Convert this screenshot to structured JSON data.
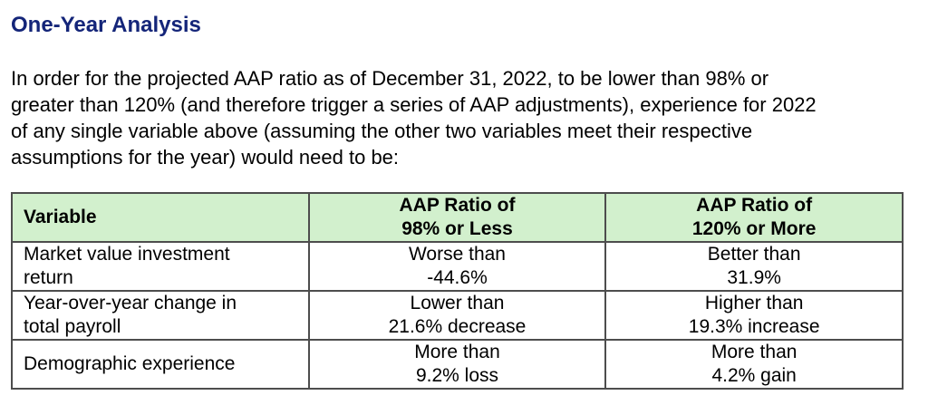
{
  "colors": {
    "accent": "#142579",
    "header_bg": "#d2f0cd",
    "border": "#4d4d4d"
  },
  "page": {
    "title": "One-Year Analysis",
    "intro_lines": [
      "In order for the projected AAP ratio as of December 31, 2022, to be lower than 98% or",
      "greater than 120% (and therefore trigger a series of AAP adjustments), experience for 2022",
      "of any single variable above (assuming the other two variables meet their respective",
      "assumptions for the year) would need to be:"
    ]
  },
  "table": {
    "headers": {
      "variable": {
        "line1": "Variable",
        "line2": ""
      },
      "less": {
        "line1": "AAP Ratio of",
        "line2": "98% or Less"
      },
      "more": {
        "line1": "AAP Ratio of",
        "line2": "120% or More"
      }
    },
    "rows": [
      {
        "variable": {
          "line1": "Market value investment",
          "line2": "return"
        },
        "less": {
          "line1": "Worse than",
          "line2": "-44.6%"
        },
        "more": {
          "line1": "Better than",
          "line2": "31.9%"
        }
      },
      {
        "variable": {
          "line1": "Year-over-year change in",
          "line2": "total payroll"
        },
        "less": {
          "line1": "Lower than",
          "line2": "21.6% decrease"
        },
        "more": {
          "line1": "Higher than",
          "line2": "19.3% increase"
        }
      },
      {
        "variable": {
          "line1": "Demographic experience",
          "line2": ""
        },
        "less": {
          "line1": "More than",
          "line2": "9.2% loss"
        },
        "more": {
          "line1": "More than",
          "line2": "4.2% gain"
        }
      }
    ]
  }
}
